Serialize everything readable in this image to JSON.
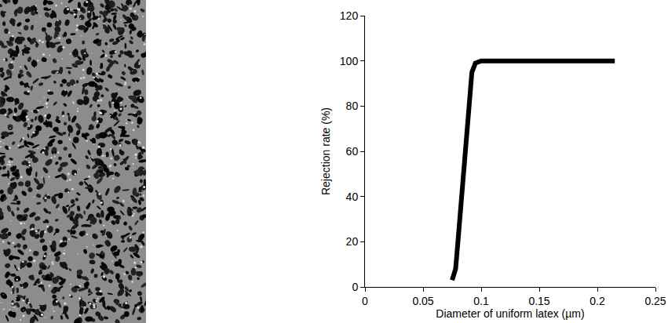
{
  "chart_data": {
    "type": "line",
    "x_label": "Diameter of uniform latex (µm)",
    "y_label": "Rejection rate (%)",
    "x": [
      0.075,
      0.078,
      0.08,
      0.083,
      0.086,
      0.089,
      0.092,
      0.095,
      0.1,
      0.15,
      0.215
    ],
    "values": [
      3,
      8,
      20,
      40,
      60,
      80,
      95,
      99,
      100,
      100,
      100
    ],
    "color": "#000000",
    "xlim": [
      0,
      0.25
    ],
    "xticks": [
      0,
      0.05,
      0.1,
      0.15,
      0.2,
      0.25
    ],
    "ylim": [
      0,
      120
    ],
    "yticks": [
      0,
      20,
      40,
      60,
      80,
      100,
      120
    ],
    "grid": false
  }
}
